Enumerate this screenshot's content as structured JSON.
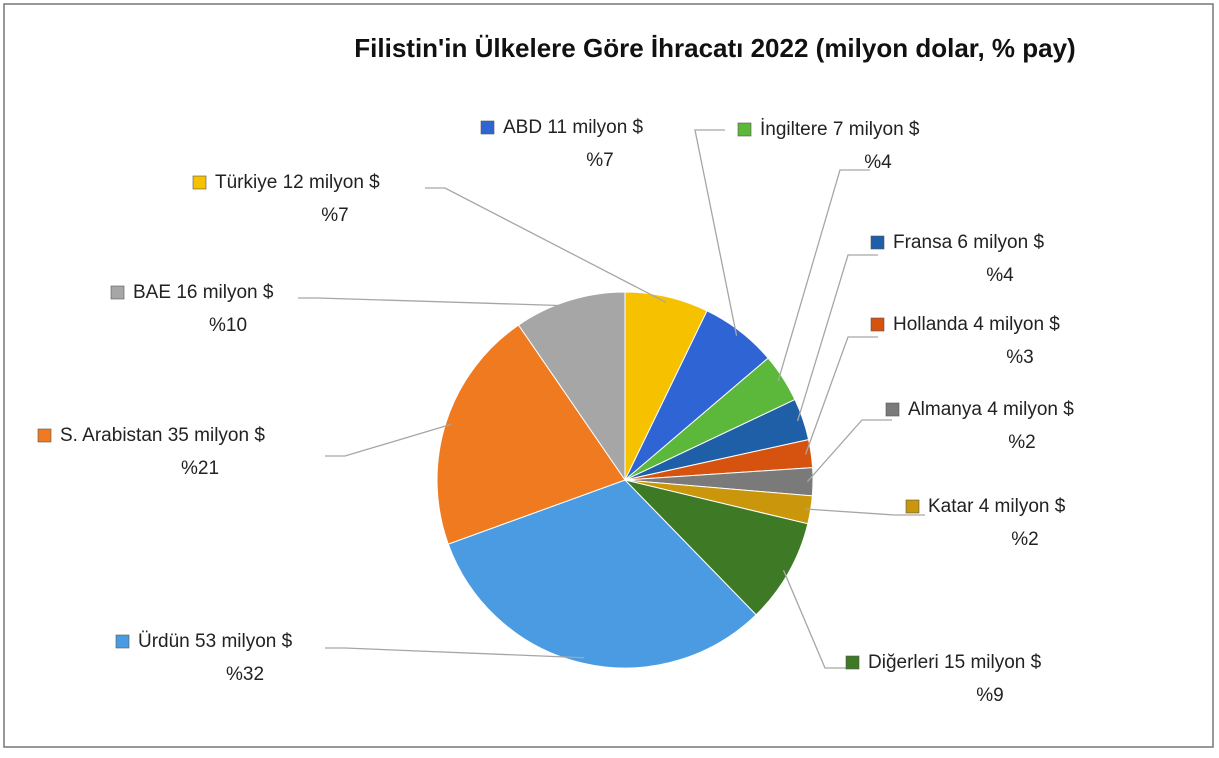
{
  "chart_data": {
    "type": "pie",
    "title": "Filistin'in Ülkelere Göre İhracatı 2022 (milyon dolar, % pay)",
    "categories": [
      "Türkiye",
      "ABD",
      "İngiltere",
      "Fransa",
      "Hollanda",
      "Almanya",
      "Katar",
      "Diğerleri",
      "Ürdün",
      "S. Arabistan",
      "BAE"
    ],
    "values": [
      12,
      11,
      7,
      6,
      4,
      4,
      4,
      15,
      53,
      35,
      16
    ],
    "value_labels": [
      "12 milyon $",
      "11 milyon $",
      "7 milyon $",
      "6 milyon $",
      "4 milyon $",
      "4 milyon $",
      "4 milyon $",
      "15 milyon $",
      "53 milyon $",
      "35 milyon $",
      "16 milyon $"
    ],
    "percent_labels": [
      "%7",
      "%7",
      "%4",
      "%4",
      "%3",
      "%2",
      "%2",
      "%9",
      "%32",
      "%21",
      "%10"
    ],
    "colors": [
      "#f6c200",
      "#2f64d4",
      "#5cb83a",
      "#1f5fa8",
      "#d6520f",
      "#7a7a7a",
      "#c9960c",
      "#3e7a26",
      "#4a9be2",
      "#f07a1f",
      "#a6a6a6"
    ]
  }
}
